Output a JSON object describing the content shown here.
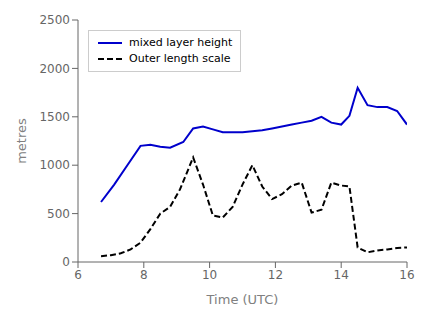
{
  "chart_data": {
    "type": "line",
    "xlabel": "Time  (UTC)",
    "ylabel": "metres",
    "xlim": [
      6,
      16
    ],
    "ylim": [
      0,
      2500
    ],
    "xticks": [
      6,
      8,
      10,
      12,
      14,
      16
    ],
    "yticks": [
      0,
      500,
      1000,
      1500,
      2000,
      2500
    ],
    "grid": false,
    "legend": "upper left",
    "series": [
      {
        "name": "mixed layer height",
        "color": "#0000cc",
        "line_style": "solid",
        "x": [
          6.7,
          7.1,
          7.5,
          7.9,
          8.2,
          8.5,
          8.8,
          9.2,
          9.5,
          9.8,
          10.1,
          10.4,
          10.7,
          11.0,
          11.3,
          11.6,
          11.9,
          12.2,
          12.5,
          12.8,
          13.1,
          13.4,
          13.7,
          14.0,
          14.25,
          14.5,
          14.8,
          15.1,
          15.4,
          15.7,
          16.0
        ],
        "values": [
          620,
          800,
          1000,
          1200,
          1210,
          1190,
          1180,
          1240,
          1380,
          1400,
          1370,
          1340,
          1340,
          1340,
          1350,
          1360,
          1380,
          1400,
          1420,
          1440,
          1460,
          1500,
          1440,
          1420,
          1510,
          1800,
          1620,
          1600,
          1600,
          1560,
          1420
        ]
      },
      {
        "name": "Outer length scale",
        "color": "#000000",
        "line_style": "dashed",
        "x": [
          6.7,
          7.0,
          7.3,
          7.6,
          7.9,
          8.2,
          8.5,
          8.8,
          9.1,
          9.5,
          9.8,
          10.1,
          10.4,
          10.7,
          11.0,
          11.3,
          11.6,
          11.9,
          12.2,
          12.5,
          12.8,
          13.1,
          13.4,
          13.7,
          14.0,
          14.25,
          14.5,
          14.8,
          15.1,
          15.4,
          15.7,
          16.0
        ],
        "values": [
          60,
          70,
          90,
          130,
          200,
          340,
          500,
          570,
          750,
          1080,
          800,
          480,
          460,
          570,
          800,
          1000,
          780,
          650,
          700,
          790,
          820,
          510,
          540,
          820,
          790,
          780,
          150,
          100,
          120,
          130,
          145,
          150
        ]
      }
    ]
  }
}
